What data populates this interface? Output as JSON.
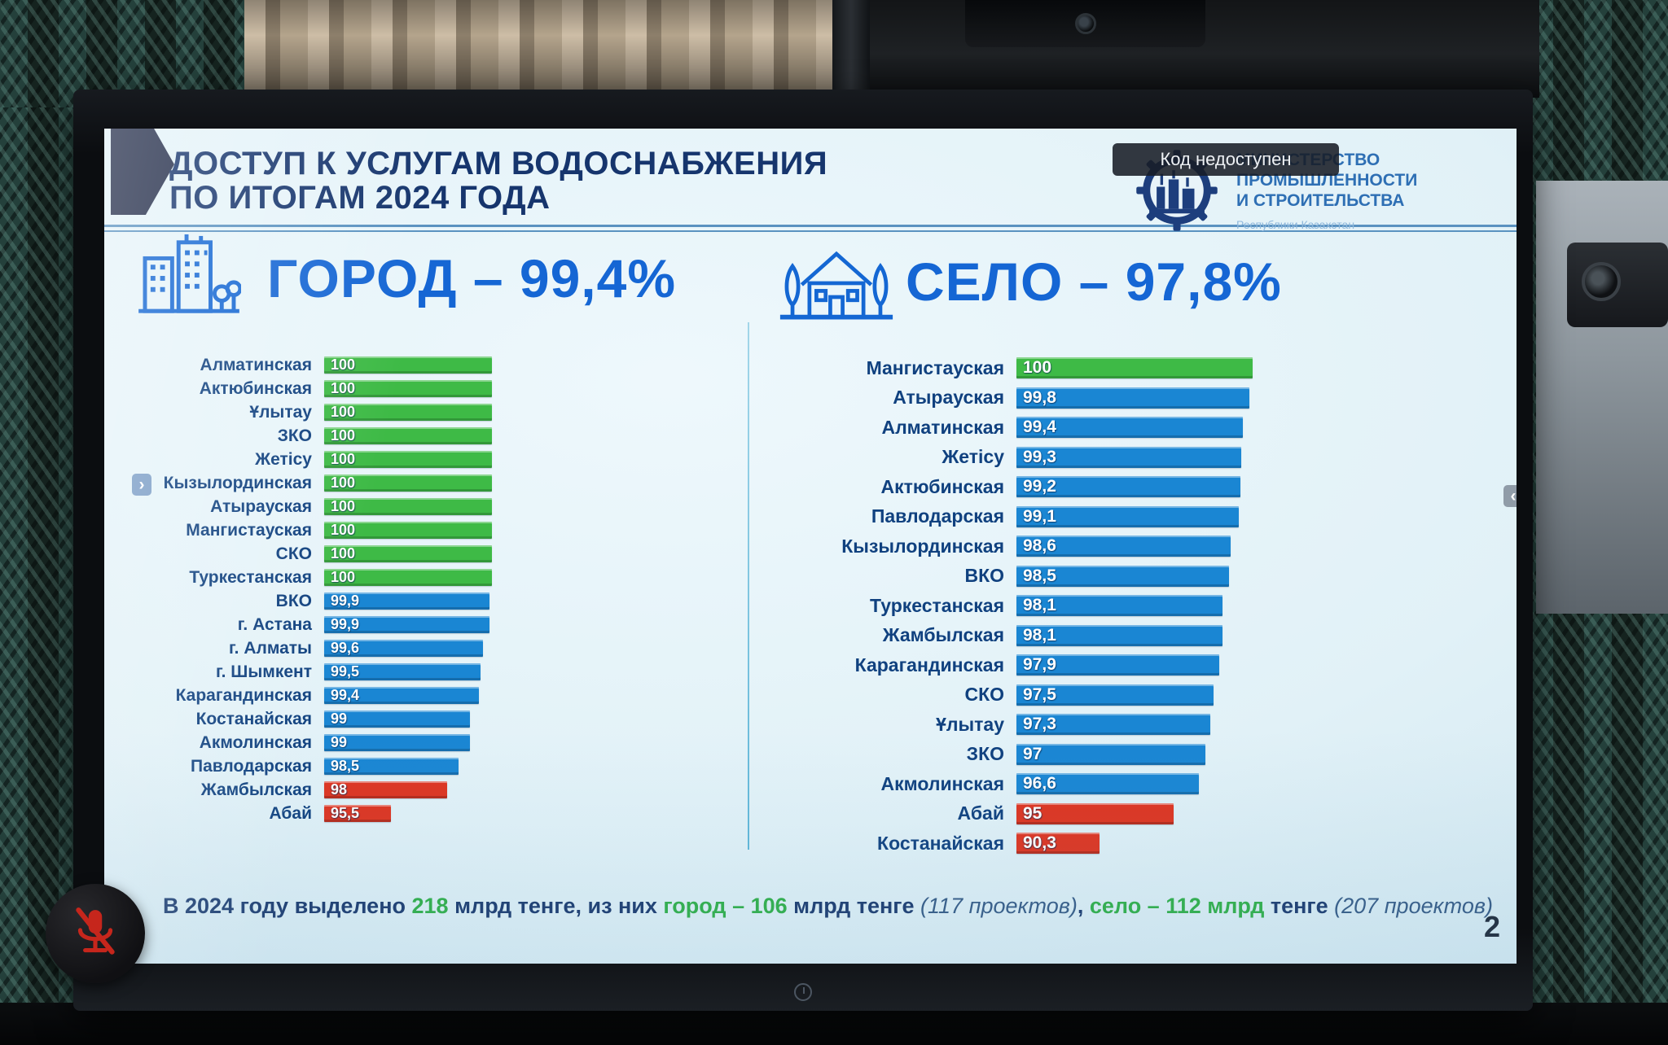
{
  "overlay": {
    "code_badge_label": "Код недоступен",
    "nav_left_glyph": "›",
    "nav_right_glyph": "‹",
    "page_number": "2"
  },
  "ministry": {
    "name_lines": [
      "МИНИСТЕРСТВО",
      "ПРОМЫШЛЕННОСТИ",
      "И СТРОИТЕЛЬСТВА"
    ],
    "subtitle": "Республики Казахстан"
  },
  "slide": {
    "title_lines": [
      "ДОСТУП К УСЛУГАМ ВОДОСНАБЖЕНИЯ",
      "ПО ИТОГАМ 2024 ГОДА"
    ]
  },
  "colors": {
    "green": "#3eba46",
    "blue": "#1a86d3",
    "red": "#de3420",
    "navy": "#17366e",
    "header_blue": "#1566d4",
    "footnote_green": "#2fae47"
  },
  "icons": {
    "city": "city-buildings-icon",
    "village": "village-house-icon",
    "ministry": "ministry-gear-buildings-icon",
    "mute": "microphone-muted-icon"
  },
  "chart_data": [
    {
      "type": "bar",
      "orientation": "horizontal",
      "section": "city",
      "title": "ГОРОД – 99,4%",
      "value_suffix": "%",
      "xlim": [
        92.5,
        100
      ],
      "rows": [
        {
          "label": "Алматинская",
          "value": 100,
          "display": "100",
          "color": "green"
        },
        {
          "label": "Актюбинская",
          "value": 100,
          "display": "100",
          "color": "green"
        },
        {
          "label": "Ұлытау",
          "value": 100,
          "display": "100",
          "color": "green"
        },
        {
          "label": "ЗКО",
          "value": 100,
          "display": "100",
          "color": "green"
        },
        {
          "label": "Жетісу",
          "value": 100,
          "display": "100",
          "color": "green"
        },
        {
          "label": "Кызылординская",
          "value": 100,
          "display": "100",
          "color": "green"
        },
        {
          "label": "Атырауская",
          "value": 100,
          "display": "100",
          "color": "green"
        },
        {
          "label": "Мангистауская",
          "value": 100,
          "display": "100",
          "color": "green"
        },
        {
          "label": "СКО",
          "value": 100,
          "display": "100",
          "color": "green"
        },
        {
          "label": "Туркестанская",
          "value": 100,
          "display": "100",
          "color": "green"
        },
        {
          "label": "ВКО",
          "value": 99.9,
          "display": "99,9",
          "color": "blue"
        },
        {
          "label": "г. Астана",
          "value": 99.9,
          "display": "99,9",
          "color": "blue"
        },
        {
          "label": "г. Алматы",
          "value": 99.6,
          "display": "99,6",
          "color": "blue"
        },
        {
          "label": "г. Шымкент",
          "value": 99.5,
          "display": "99,5",
          "color": "blue"
        },
        {
          "label": "Карагандинская",
          "value": 99.4,
          "display": "99,4",
          "color": "blue"
        },
        {
          "label": "Костанайская",
          "value": 99,
          "display": "99",
          "color": "blue"
        },
        {
          "label": "Акмолинская",
          "value": 99,
          "display": "99",
          "color": "blue"
        },
        {
          "label": "Павлодарская",
          "value": 98.5,
          "display": "98,5",
          "color": "blue"
        },
        {
          "label": "Жамбылская",
          "value": 98,
          "display": "98",
          "color": "red"
        },
        {
          "label": "Абай",
          "value": 95.5,
          "display": "95,5",
          "color": "red"
        }
      ]
    },
    {
      "type": "bar",
      "orientation": "horizontal",
      "section": "village",
      "title": "СЕЛО – 97,8%",
      "value_suffix": "%",
      "xlim": [
        85,
        100
      ],
      "rows": [
        {
          "label": "Мангистауская",
          "value": 100,
          "display": "100",
          "color": "green"
        },
        {
          "label": "Атырауская",
          "value": 99.8,
          "display": "99,8",
          "color": "blue"
        },
        {
          "label": "Алматинская",
          "value": 99.4,
          "display": "99,4",
          "color": "blue"
        },
        {
          "label": "Жетісу",
          "value": 99.3,
          "display": "99,3",
          "color": "blue"
        },
        {
          "label": "Актюбинская",
          "value": 99.2,
          "display": "99,2",
          "color": "blue"
        },
        {
          "label": "Павлодарская",
          "value": 99.1,
          "display": "99,1",
          "color": "blue"
        },
        {
          "label": "Кызылординская",
          "value": 98.6,
          "display": "98,6",
          "color": "blue"
        },
        {
          "label": "ВКО",
          "value": 98.5,
          "display": "98,5",
          "color": "blue"
        },
        {
          "label": "Туркестанская",
          "value": 98.1,
          "display": "98,1",
          "color": "blue"
        },
        {
          "label": "Жамбылская",
          "value": 98.1,
          "display": "98,1",
          "color": "blue"
        },
        {
          "label": "Карагандинская",
          "value": 97.9,
          "display": "97,9",
          "color": "blue"
        },
        {
          "label": "СКО",
          "value": 97.5,
          "display": "97,5",
          "color": "blue"
        },
        {
          "label": "Ұлытау",
          "value": 97.3,
          "display": "97,3",
          "color": "blue"
        },
        {
          "label": "ЗКО",
          "value": 97,
          "display": "97",
          "color": "blue"
        },
        {
          "label": "Акмолинская",
          "value": 96.6,
          "display": "96,6",
          "color": "blue"
        },
        {
          "label": "Абай",
          "value": 95,
          "display": "95",
          "color": "red"
        },
        {
          "label": "Костанайская",
          "value": 90.3,
          "display": "90,3",
          "color": "red"
        }
      ]
    }
  ],
  "footnote": {
    "segments": [
      {
        "text": "В 2024 году выделено ",
        "style": "navy"
      },
      {
        "text": "218",
        "style": "green"
      },
      {
        "text": " млрд тенге, из них ",
        "style": "navy"
      },
      {
        "text": "город – 106",
        "style": "green"
      },
      {
        "text": " млрд тенге ",
        "style": "navy"
      },
      {
        "text": "(117 проектов)",
        "style": "paren"
      },
      {
        "text": ", ",
        "style": "navy"
      },
      {
        "text": "село – 112 млрд",
        "style": "green"
      },
      {
        "text": " тенге ",
        "style": "navy"
      },
      {
        "text": "(207 проектов)",
        "style": "paren"
      }
    ]
  }
}
